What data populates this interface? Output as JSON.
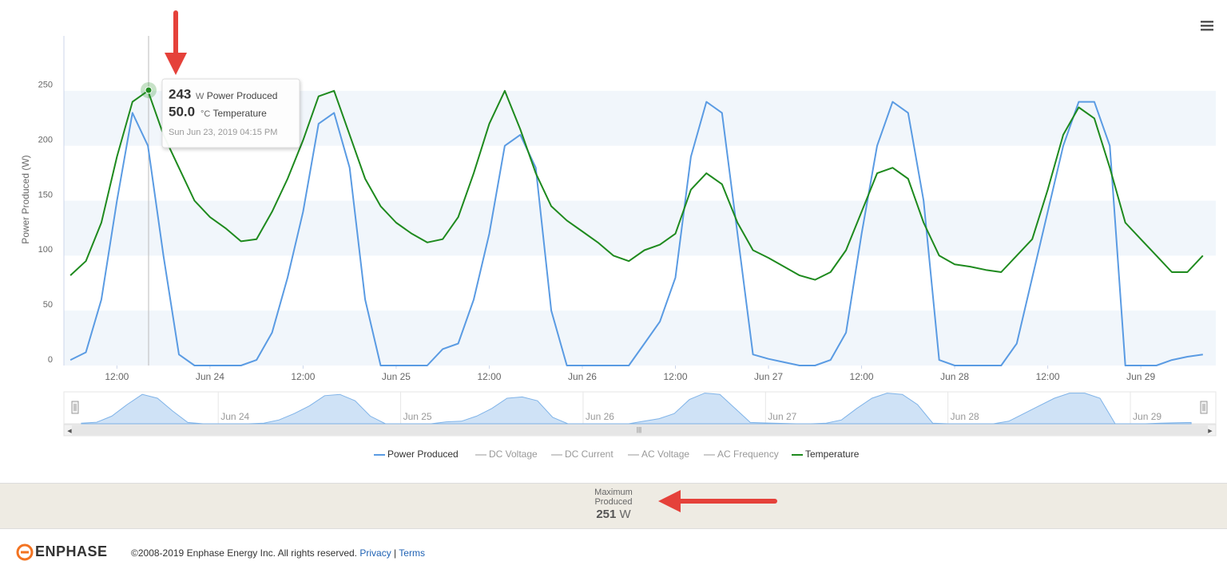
{
  "chart_data": {
    "type": "line",
    "y_label": "Power Produced (W)",
    "x": [
      "2019-06-23T06:00",
      "2019-06-23T08:00",
      "2019-06-23T10:00",
      "2019-06-23T12:00",
      "2019-06-23T14:00",
      "2019-06-23T16:00",
      "2019-06-23T18:00",
      "2019-06-23T20:00",
      "2019-06-23T22:00",
      "2019-06-24T00:00",
      "2019-06-24T02:00",
      "2019-06-24T04:00",
      "2019-06-24T06:00",
      "2019-06-24T08:00",
      "2019-06-24T10:00",
      "2019-06-24T12:00",
      "2019-06-24T14:00",
      "2019-06-24T16:00",
      "2019-06-24T18:00",
      "2019-06-24T20:00",
      "2019-06-24T22:00",
      "2019-06-25T00:00",
      "2019-06-25T02:00",
      "2019-06-25T04:00",
      "2019-06-25T06:00",
      "2019-06-25T08:00",
      "2019-06-25T10:00",
      "2019-06-25T12:00",
      "2019-06-25T14:00",
      "2019-06-25T16:00",
      "2019-06-25T18:00",
      "2019-06-25T20:00",
      "2019-06-25T22:00",
      "2019-06-26T00:00",
      "2019-06-26T02:00",
      "2019-06-26T04:00",
      "2019-06-26T06:00",
      "2019-06-26T08:00",
      "2019-06-26T10:00",
      "2019-06-26T12:00",
      "2019-06-26T14:00",
      "2019-06-26T16:00",
      "2019-06-26T18:00",
      "2019-06-26T20:00",
      "2019-06-26T22:00",
      "2019-06-27T00:00",
      "2019-06-27T02:00",
      "2019-06-27T04:00",
      "2019-06-27T06:00",
      "2019-06-27T08:00",
      "2019-06-27T10:00",
      "2019-06-27T12:00",
      "2019-06-27T14:00",
      "2019-06-27T16:00",
      "2019-06-27T18:00",
      "2019-06-27T20:00",
      "2019-06-27T22:00",
      "2019-06-28T00:00",
      "2019-06-28T02:00",
      "2019-06-28T04:00",
      "2019-06-28T06:00",
      "2019-06-28T08:00",
      "2019-06-28T10:00",
      "2019-06-28T12:00",
      "2019-06-28T14:00",
      "2019-06-28T16:00",
      "2019-06-28T18:00",
      "2019-06-28T20:00",
      "2019-06-28T22:00",
      "2019-06-29T00:00",
      "2019-06-29T02:00",
      "2019-06-29T04:00",
      "2019-06-29T06:00",
      "2019-06-29T08:00"
    ],
    "series": [
      {
        "name": "Power Produced",
        "color": "#5a9be3",
        "values": [
          5,
          12,
          60,
          150,
          230,
          200,
          100,
          10,
          0,
          0,
          0,
          0,
          5,
          30,
          80,
          140,
          220,
          230,
          180,
          60,
          0,
          0,
          0,
          0,
          15,
          20,
          60,
          120,
          200,
          210,
          180,
          50,
          0,
          0,
          0,
          0,
          0,
          20,
          40,
          80,
          190,
          240,
          230,
          120,
          10,
          6,
          3,
          0,
          0,
          5,
          30,
          120,
          200,
          240,
          230,
          150,
          5,
          0,
          0,
          0,
          0,
          20,
          80,
          140,
          200,
          240,
          240,
          200,
          0,
          0,
          0,
          5,
          8,
          10
        ]
      },
      {
        "name": "Temperature",
        "color": "#1e8a1e",
        "axis": "y2",
        "values": [
          16.4,
          19,
          26,
          38,
          48,
          50,
          42,
          36,
          30,
          27,
          25,
          22.6,
          23,
          28,
          34,
          41,
          49,
          50,
          42,
          34,
          29,
          26,
          24,
          22.4,
          23,
          27,
          35,
          44,
          50,
          43,
          35,
          29,
          26.4,
          24.4,
          22.4,
          20,
          19,
          21,
          22,
          24,
          32,
          35,
          33,
          26,
          21,
          19.6,
          18,
          16.4,
          15.6,
          17,
          21,
          28,
          35,
          36,
          34,
          26,
          20,
          18.4,
          18,
          17.4,
          17,
          20,
          23,
          32,
          42,
          47,
          45,
          36,
          26,
          23,
          20,
          17,
          17,
          20
        ]
      }
    ],
    "legend_inactive": [
      "DC Voltage",
      "DC Current",
      "AC Voltage",
      "AC Frequency"
    ],
    "xlim": [
      "2019-06-23T05:10",
      "2019-06-29T09:40"
    ],
    "xticks": [
      {
        "value": "2019-06-23T12:00",
        "label": "12:00"
      },
      {
        "value": "2019-06-24T00:00",
        "label": "Jun 24"
      },
      {
        "value": "2019-06-24T12:00",
        "label": "12:00"
      },
      {
        "value": "2019-06-25T00:00",
        "label": "Jun 25"
      },
      {
        "value": "2019-06-25T12:00",
        "label": "12:00"
      },
      {
        "value": "2019-06-26T00:00",
        "label": "Jun 26"
      },
      {
        "value": "2019-06-26T12:00",
        "label": "12:00"
      },
      {
        "value": "2019-06-27T00:00",
        "label": "Jun 27"
      },
      {
        "value": "2019-06-27T12:00",
        "label": "12:00"
      },
      {
        "value": "2019-06-28T00:00",
        "label": "Jun 28"
      },
      {
        "value": "2019-06-28T12:00",
        "label": "12:00"
      },
      {
        "value": "2019-06-29T00:00",
        "label": "Jun 29"
      }
    ],
    "ylim": [
      0,
      300
    ],
    "yticks": [
      0,
      50,
      100,
      150,
      200,
      250
    ],
    "y2lim": [
      0,
      60
    ],
    "bands": true,
    "tooltip": {
      "power": 243,
      "power_unit": "W",
      "temperature": "50.0",
      "temperature_unit": "°C",
      "date": "Sun Jun 23, 2019 04:15 PM"
    }
  },
  "summary": {
    "label": "Maximum Produced",
    "value": 251,
    "unit": "W"
  },
  "footer": {
    "brand": "ENPHASE",
    "copyright": "©2008-2019 Enphase Energy Inc. All rights reserved.",
    "privacy": "Privacy",
    "separator": "|",
    "terms": "Terms"
  }
}
